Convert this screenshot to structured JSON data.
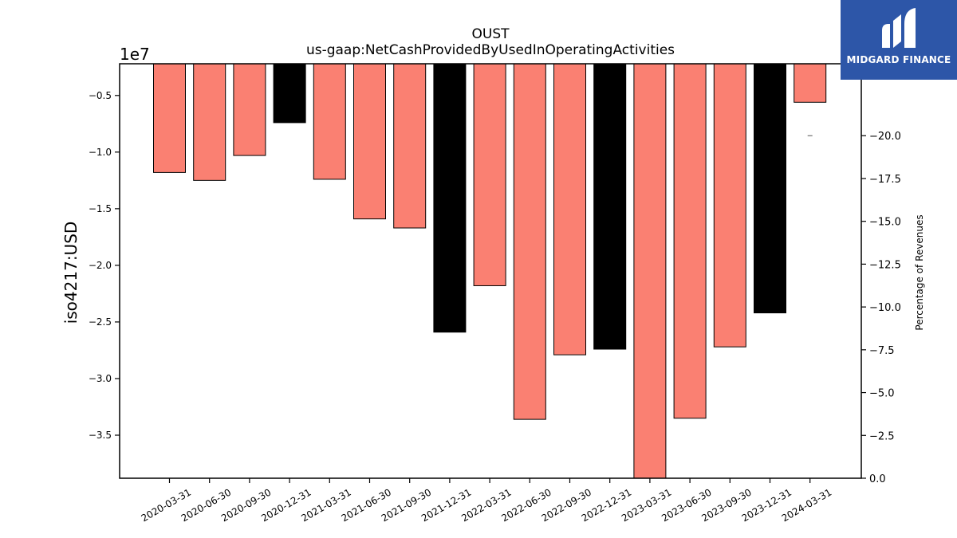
{
  "chart_data": {
    "type": "bar",
    "title": "OUST",
    "subtitle": "us-gaap:NetCashProvidedByUsedInOperatingActivities",
    "ylabel": "iso4217:USD",
    "y_multiplier_label": "1e7",
    "y2label": "Percentage of Revenues",
    "categories": [
      "2020-03-31",
      "2020-06-30",
      "2020-09-30",
      "2020-12-31",
      "2021-03-31",
      "2021-06-30",
      "2021-09-30",
      "2021-12-31",
      "2022-03-31",
      "2022-06-30",
      "2022-09-30",
      "2022-12-31",
      "2023-03-31",
      "2023-06-30",
      "2023-09-30",
      "2023-12-31",
      "2024-03-31"
    ],
    "values": [
      -11800000,
      -12500000,
      -10300000,
      -7400000,
      -12400000,
      -15900000,
      -16700000,
      -25900000,
      -21800000,
      -33600000,
      -27900000,
      -27400000,
      -38800000,
      -33500000,
      -27200000,
      -24200000,
      -5600000
    ],
    "bar_colors": [
      "#fa8072",
      "#fa8072",
      "#fa8072",
      "#000000",
      "#fa8072",
      "#fa8072",
      "#fa8072",
      "#000000",
      "#fa8072",
      "#fa8072",
      "#fa8072",
      "#000000",
      "#fa8072",
      "#fa8072",
      "#fa8072",
      "#000000",
      "#fa8072"
    ],
    "ylim": [
      -38800000,
      -2200000
    ],
    "yticks": [
      -5000000,
      -10000000,
      -15000000,
      -20000000,
      -25000000,
      -30000000,
      -35000000
    ],
    "ytick_labels": [
      "−0.5",
      "−1.0",
      "−1.5",
      "−2.0",
      "−2.5",
      "−3.0",
      "−3.5"
    ],
    "y2lim": [
      0,
      -24.2
    ],
    "y2ticks": [
      -20.0,
      -17.5,
      -15.0,
      -12.5,
      -10.0,
      -7.5,
      -5.0,
      -2.5,
      0.0
    ],
    "y2tick_labels": [
      "−20.0",
      "−17.5",
      "−15.0",
      "−12.5",
      "−10.0",
      "−7.5",
      "−5.0",
      "−2.5",
      "0.0"
    ],
    "y2_series": [
      -20.0
    ]
  },
  "logo": {
    "text": "MIDGARD FINANCE",
    "accent": "#2d56a8"
  }
}
